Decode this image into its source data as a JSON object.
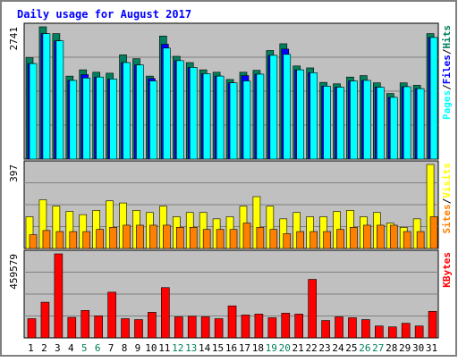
{
  "chart_data": {
    "type": "bar",
    "title": "Daily usage for August 2017",
    "categories": [
      "1",
      "2",
      "3",
      "4",
      "5",
      "6",
      "7",
      "8",
      "9",
      "10",
      "11",
      "12",
      "13",
      "14",
      "15",
      "16",
      "17",
      "18",
      "19",
      "20",
      "21",
      "22",
      "23",
      "24",
      "25",
      "26",
      "27",
      "28",
      "29",
      "30",
      "31"
    ],
    "weekend_days": [
      "5",
      "6",
      "12",
      "13",
      "19",
      "20",
      "26",
      "27"
    ],
    "panels": [
      {
        "id": "hits-files-pages",
        "ylabel_parts": [
          "Pages",
          "Files",
          "Hits"
        ],
        "ymax_label": "2741",
        "ylim": [
          0,
          2741
        ],
        "series": [
          {
            "name": "Hits",
            "color": "#00805c",
            "values": [
              2100,
              2741,
              2600,
              1720,
              1850,
              1800,
              1780,
              2160,
              2080,
              1720,
              2550,
              2130,
              2000,
              1850,
              1800,
              1650,
              1800,
              1840,
              2250,
              2390,
              1930,
              1890,
              1590,
              1560,
              1700,
              1730,
              1580,
              1360,
              1580,
              1530,
              2600
            ]
          },
          {
            "name": "Files",
            "color": "#0000ff",
            "values": [
              1980,
              2600,
              2450,
              1630,
              1750,
              1700,
              1660,
              2000,
              1950,
              1670,
              2380,
              2040,
              1900,
              1770,
              1720,
              1580,
              1730,
              1760,
              2150,
              2280,
              1850,
              1790,
              1510,
              1490,
              1620,
              1630,
              1490,
              1280,
              1500,
              1460,
              2520
            ]
          },
          {
            "name": "Pages",
            "color": "#00ffff",
            "values": [
              1980,
              2600,
              2450,
              1630,
              1680,
              1700,
              1660,
              2000,
              1950,
              1620,
              2300,
              2040,
              1900,
              1770,
              1720,
              1580,
              1620,
              1760,
              2150,
              2170,
              1850,
              1790,
              1510,
              1490,
              1620,
              1630,
              1490,
              1280,
              1500,
              1460,
              2520
            ]
          }
        ]
      },
      {
        "id": "visits-sites",
        "ylabel_parts": [
          "Sites",
          "Visits"
        ],
        "ymax_label": "397",
        "ylim": [
          0,
          397
        ],
        "series": [
          {
            "name": "Visits",
            "color": "#ffff00",
            "values": [
              150,
              230,
              200,
              175,
              160,
              180,
              225,
              215,
              180,
              170,
              200,
              150,
              170,
              170,
              140,
              150,
              200,
              245,
              200,
              140,
              170,
              150,
              150,
              175,
              180,
              150,
              170,
              120,
              100,
              140,
              397
            ]
          },
          {
            "name": "Sites",
            "color": "#ff8000",
            "values": [
              65,
              85,
              80,
              80,
              80,
              90,
              100,
              110,
              110,
              110,
              110,
              100,
              100,
              90,
              90,
              90,
              120,
              100,
              90,
              70,
              80,
              80,
              80,
              90,
              100,
              110,
              110,
              110,
              80,
              80,
              150
            ]
          }
        ]
      },
      {
        "id": "kbytes",
        "ylabel_parts": [
          "KBytes"
        ],
        "ymax_label": "459579",
        "ylim": [
          0,
          459579
        ],
        "series": [
          {
            "name": "KBytes",
            "color": "#ff0000",
            "values": [
              105000,
              195000,
              459579,
              112000,
              150000,
              120000,
              250000,
              105000,
              100000,
              140000,
              275000,
              115000,
              118000,
              115000,
              105000,
              175000,
              125000,
              130000,
              110000,
              135000,
              130000,
              320000,
              95000,
              115000,
              110000,
              100000,
              65000,
              60000,
              80000,
              65000,
              145000
            ]
          }
        ]
      }
    ]
  },
  "colors": {
    "frame_border": "#808080",
    "plot_bg": "#c0c0c0",
    "grid": "#808080",
    "title": "#0000ff",
    "weekday_label": "#000000",
    "weekend_label": "#00805c",
    "ylabel_separator": "#000000"
  }
}
